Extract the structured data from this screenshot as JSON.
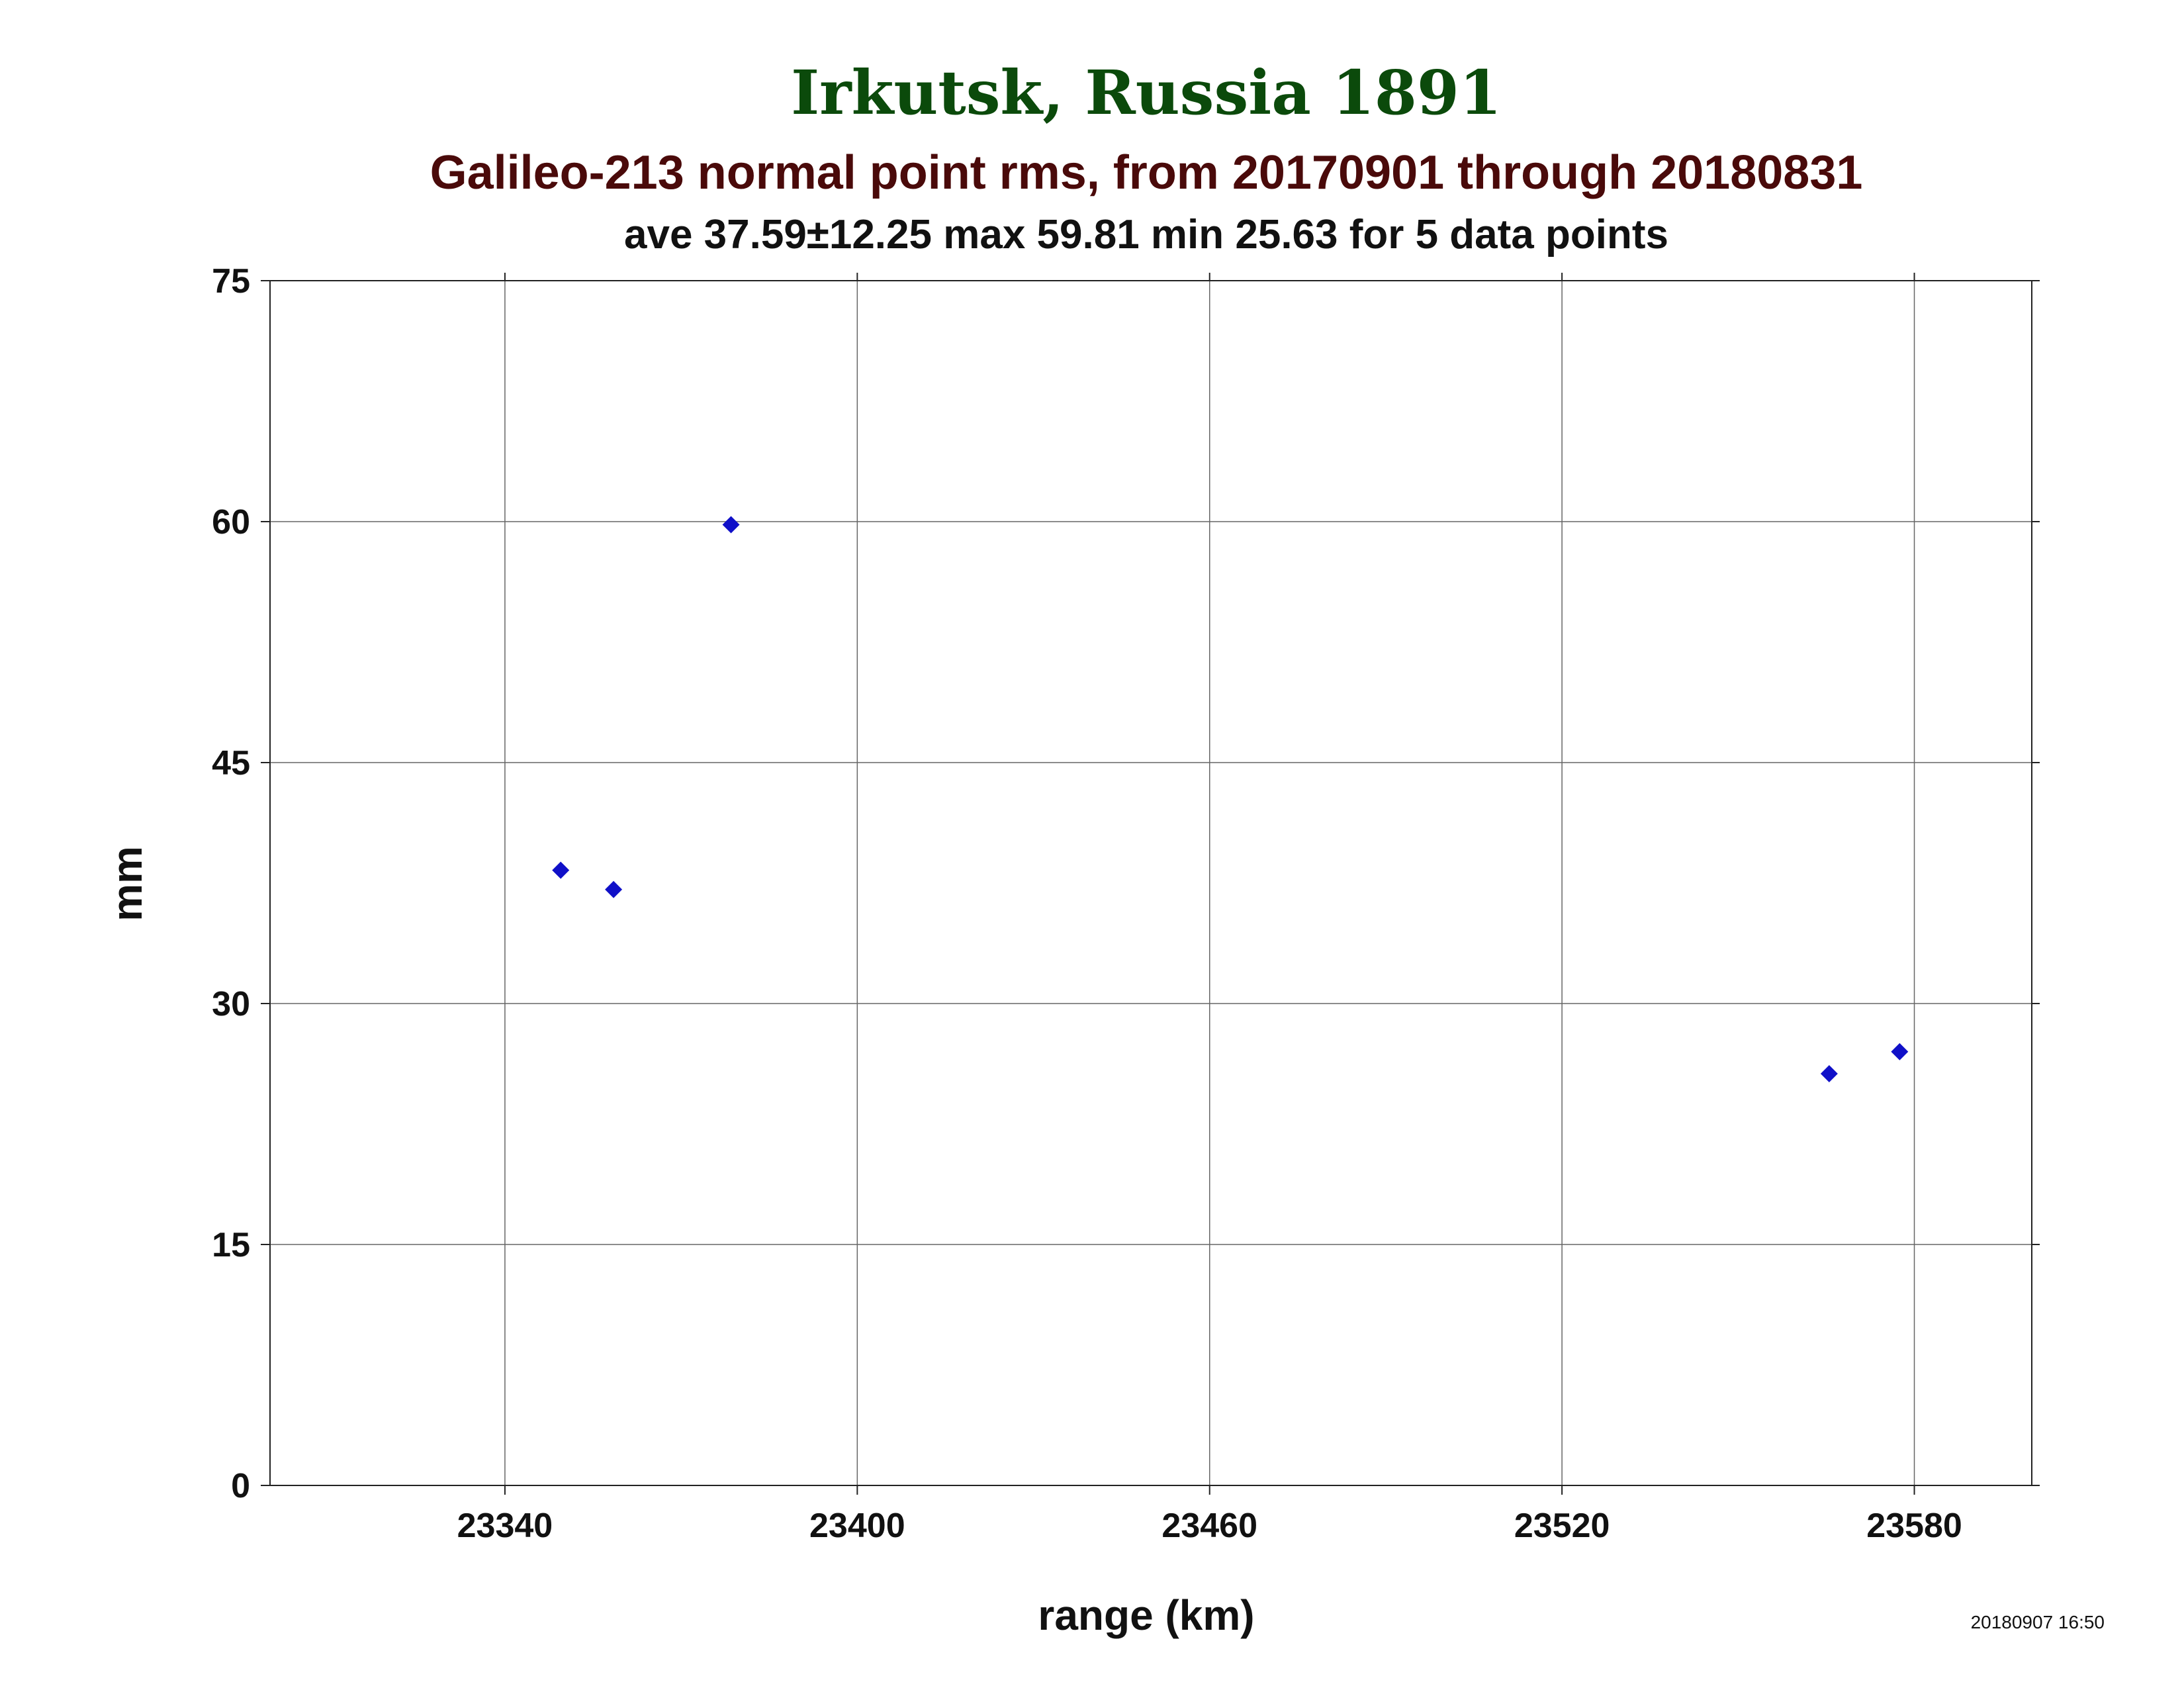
{
  "chart_data": {
    "type": "scatter",
    "title": "Irkutsk, Russia 1891",
    "subtitle": "Galileo-213 normal point rms, from 20170901 through 20180831",
    "stats_line": "ave 37.59±12.25 max 59.81 min 25.63 for 5 data points",
    "xlabel": "range (km)",
    "ylabel": "mm",
    "xlim": [
      23300,
      23600
    ],
    "ylim": [
      0,
      75
    ],
    "x_ticks": [
      23340,
      23400,
      23460,
      23520,
      23580
    ],
    "y_ticks": [
      0,
      15,
      30,
      45,
      60,
      75
    ],
    "grid": true,
    "points": [
      {
        "x": 23349.5,
        "y": 38.3
      },
      {
        "x": 23358.5,
        "y": 37.1
      },
      {
        "x": 23378.5,
        "y": 59.81
      },
      {
        "x": 23565.5,
        "y": 25.63
      },
      {
        "x": 23577.5,
        "y": 27.0
      }
    ],
    "marker": "diamond",
    "timestamp": "20180907 16:50"
  },
  "colors": {
    "title": "#0b4a0b",
    "subtitle": "#4a0a0a",
    "text": "#111111",
    "marker": "#1010c8",
    "grid": "#666666",
    "axis": "#222222"
  }
}
